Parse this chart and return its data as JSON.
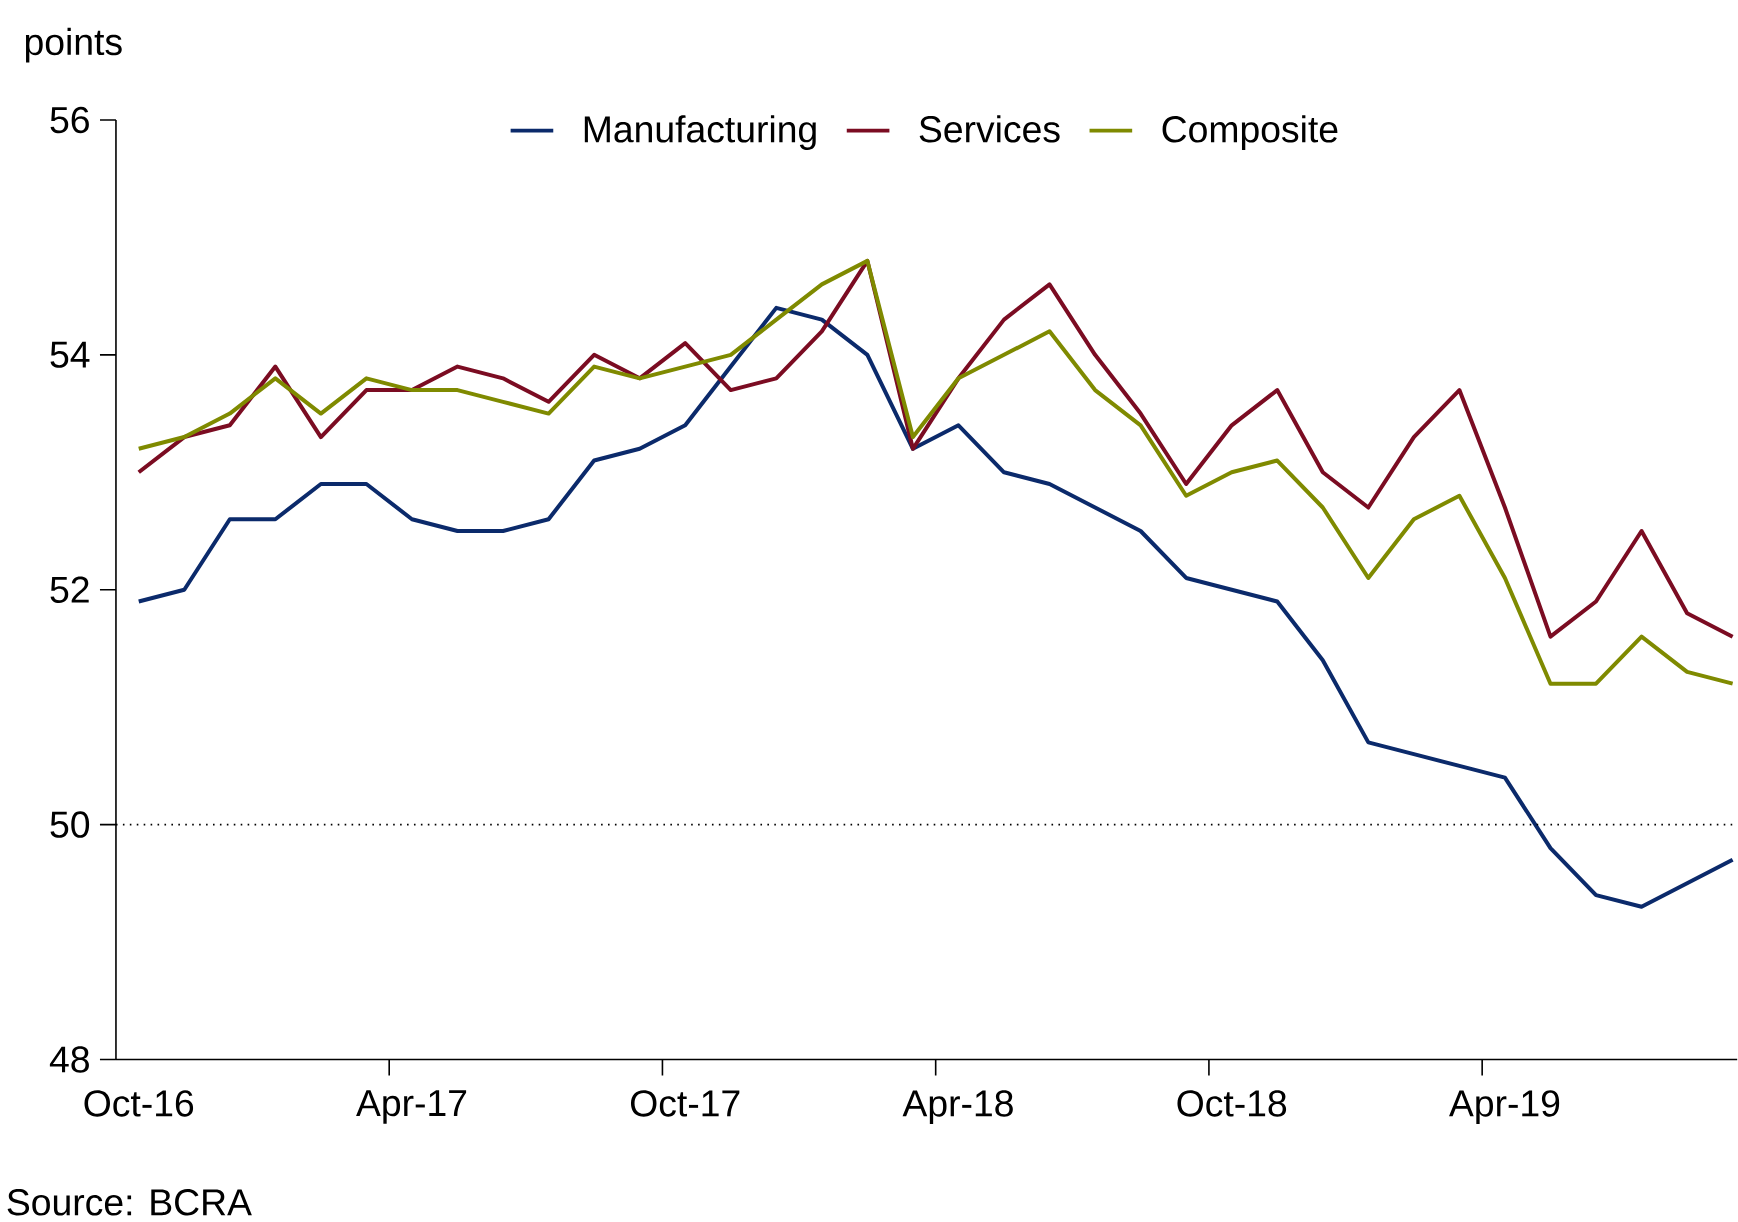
{
  "chart_data": {
    "type": "line",
    "ylabel": "points",
    "categories": [
      "Oct-16",
      null,
      null,
      null,
      null,
      null,
      "Apr-17",
      null,
      null,
      null,
      null,
      null,
      "Oct-17",
      null,
      null,
      null,
      null,
      null,
      "Apr-18",
      null,
      null,
      null,
      null,
      null,
      "Oct-18",
      null,
      null,
      null,
      null,
      null,
      "Apr-19",
      null,
      null,
      null,
      null,
      null
    ],
    "series": [
      {
        "name": "Manufacturing",
        "color": "#0b2a6b",
        "values": [
          51.9,
          52.0,
          52.6,
          52.6,
          52.9,
          52.9,
          52.6,
          52.5,
          52.5,
          52.6,
          53.1,
          53.2,
          53.4,
          53.9,
          54.4,
          54.3,
          54.0,
          53.2,
          53.4,
          53.0,
          52.9,
          52.7,
          52.5,
          52.1,
          52.0,
          51.9,
          51.4,
          50.7,
          50.6,
          50.5,
          50.4,
          49.8,
          49.4,
          49.3,
          49.5,
          49.7
        ]
      },
      {
        "name": "Services",
        "color": "#7b0c22",
        "values": [
          53.0,
          53.3,
          53.4,
          53.9,
          53.3,
          53.7,
          53.7,
          53.9,
          53.8,
          53.6,
          54.0,
          53.8,
          54.1,
          53.7,
          53.8,
          54.2,
          54.8,
          53.2,
          53.8,
          54.3,
          54.6,
          54.0,
          53.5,
          52.9,
          53.4,
          53.7,
          53.0,
          52.7,
          53.3,
          53.7,
          52.7,
          51.6,
          51.9,
          52.5,
          51.8,
          51.6
        ]
      },
      {
        "name": "Composite",
        "color": "#7f8a00",
        "values": [
          53.2,
          53.3,
          53.5,
          53.8,
          53.5,
          53.8,
          53.7,
          53.7,
          53.6,
          53.5,
          53.9,
          53.8,
          53.9,
          54.0,
          54.3,
          54.6,
          54.8,
          53.3,
          53.8,
          54.0,
          54.2,
          53.7,
          53.4,
          52.8,
          53.0,
          53.1,
          52.7,
          52.1,
          52.6,
          52.8,
          52.1,
          51.2,
          51.2,
          51.6,
          51.3,
          51.2
        ]
      }
    ],
    "ylim": [
      48,
      56
    ],
    "yticks": [
      48,
      50,
      52,
      54,
      56
    ],
    "ref_lines": [
      {
        "axis": "y",
        "value": 50,
        "color": "#000000",
        "line_style": "dotted"
      }
    ],
    "legend": "top",
    "grid": false,
    "marker": "none",
    "line_style": "solid",
    "annotations": [
      "Source: BCRA"
    ]
  }
}
